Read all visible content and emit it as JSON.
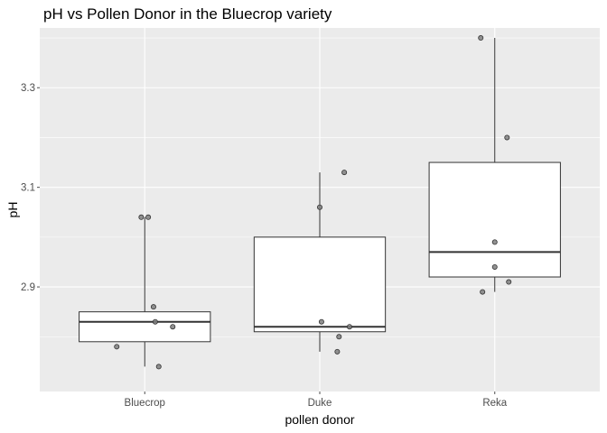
{
  "chart_data": {
    "type": "boxplot",
    "title": "pH vs Pollen Donor in the Bluecrop variety",
    "xlabel": "pollen donor",
    "ylabel": "pH",
    "categories": [
      "Bluecrop",
      "Duke",
      "Reka"
    ],
    "ylim": [
      2.69,
      3.42
    ],
    "yticks": [
      2.9,
      3.1,
      3.3
    ],
    "ytick_labels": [
      "2.9",
      "3.1",
      "3.3"
    ],
    "grid": true,
    "boxes": [
      {
        "category": "Bluecrop",
        "min": 2.74,
        "q1": 2.79,
        "median": 2.83,
        "q3": 2.85,
        "max": 3.04
      },
      {
        "category": "Duke",
        "min": 2.77,
        "q1": 2.81,
        "median": 2.82,
        "q3": 3.0,
        "max": 3.13
      },
      {
        "category": "Reka",
        "min": 2.89,
        "q1": 2.92,
        "median": 2.97,
        "q3": 3.15,
        "max": 3.4
      }
    ],
    "points": [
      {
        "category": "Bluecrop",
        "jitter": 0.02,
        "y": 3.04
      },
      {
        "category": "Bluecrop",
        "jitter": -0.02,
        "y": 3.04
      },
      {
        "category": "Bluecrop",
        "jitter": 0.05,
        "y": 2.86
      },
      {
        "category": "Bluecrop",
        "jitter": 0.06,
        "y": 2.83
      },
      {
        "category": "Bluecrop",
        "jitter": 0.16,
        "y": 2.82
      },
      {
        "category": "Bluecrop",
        "jitter": -0.16,
        "y": 2.78
      },
      {
        "category": "Bluecrop",
        "jitter": 0.08,
        "y": 2.74
      },
      {
        "category": "Duke",
        "jitter": 0.14,
        "y": 3.13
      },
      {
        "category": "Duke",
        "jitter": 0.0,
        "y": 3.06
      },
      {
        "category": "Duke",
        "jitter": 0.01,
        "y": 2.83
      },
      {
        "category": "Duke",
        "jitter": 0.17,
        "y": 2.82
      },
      {
        "category": "Duke",
        "jitter": 0.11,
        "y": 2.8
      },
      {
        "category": "Duke",
        "jitter": 0.1,
        "y": 2.77
      },
      {
        "category": "Reka",
        "jitter": -0.08,
        "y": 3.4
      },
      {
        "category": "Reka",
        "jitter": 0.07,
        "y": 3.2
      },
      {
        "category": "Reka",
        "jitter": 0.0,
        "y": 2.99
      },
      {
        "category": "Reka",
        "jitter": 0.0,
        "y": 2.94
      },
      {
        "category": "Reka",
        "jitter": 0.08,
        "y": 2.91
      },
      {
        "category": "Reka",
        "jitter": -0.07,
        "y": 2.89
      }
    ]
  },
  "colors": {
    "panel": "#ebebeb",
    "grid_major": "#ffffff",
    "box_fill": "#ffffff",
    "box_stroke": "#333333",
    "point_fill": "#7f7f7f",
    "point_stroke": "#333333",
    "tick": "#4d4d4d"
  }
}
